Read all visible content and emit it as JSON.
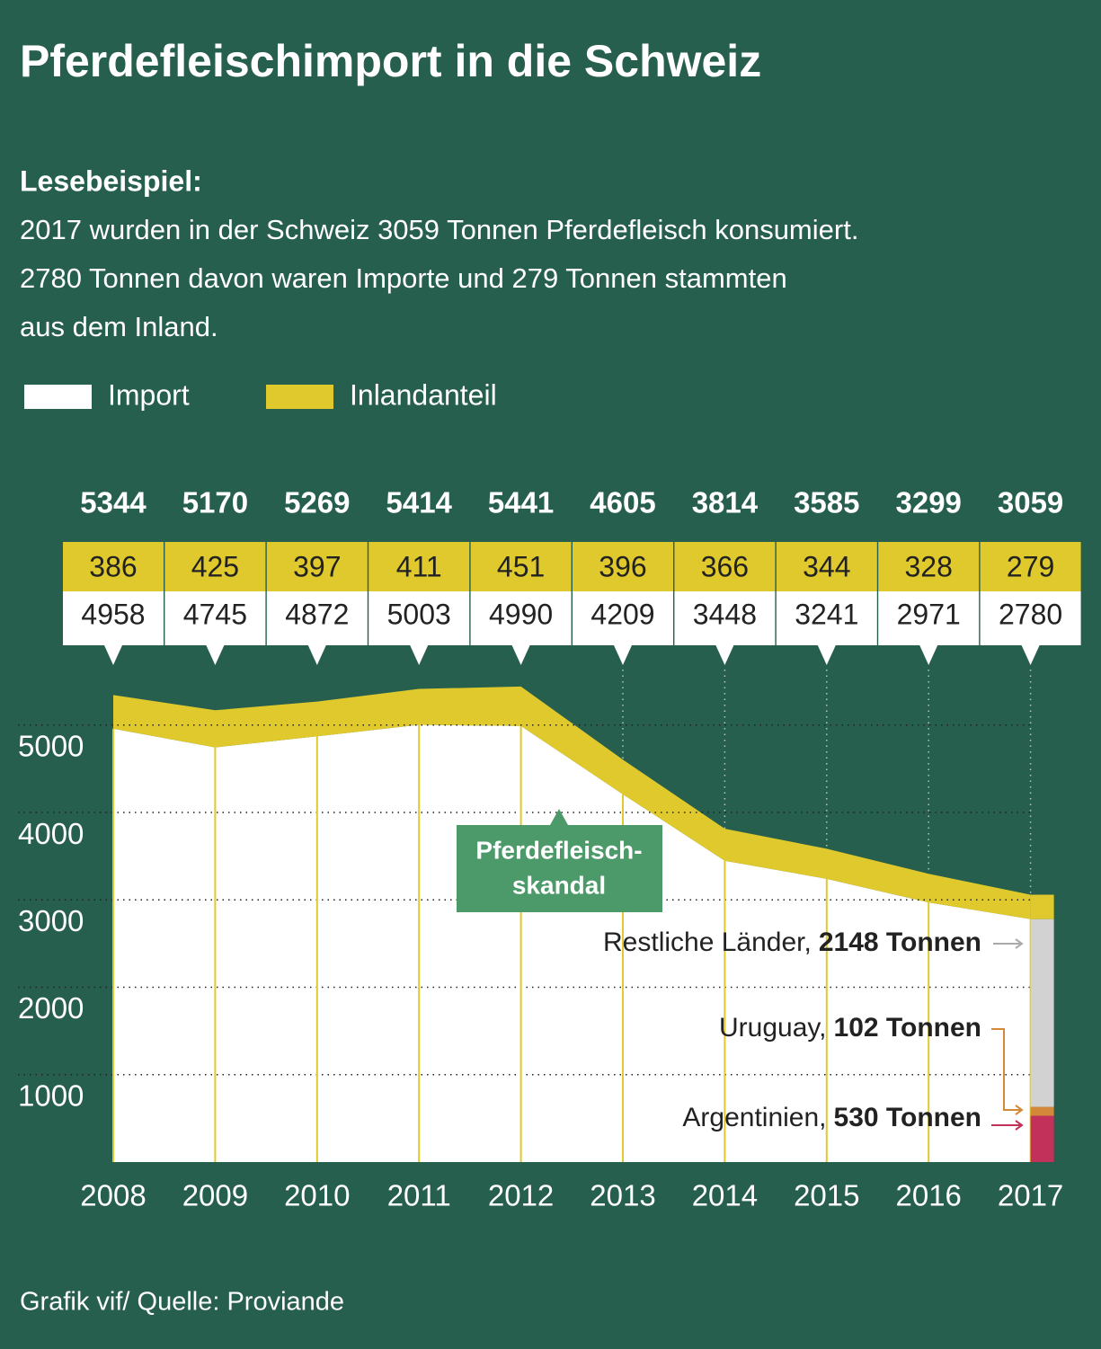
{
  "chart_data": {
    "type": "area",
    "title": "Pferdefleischimport in die Schweiz",
    "subtitle": "Lesebeispiel:",
    "description": [
      "2017 wurden in der Schweiz 3059 Tonnen Pferdefleisch konsumiert.",
      "2780 Tonnen davon waren Importe und 279 Tonnen stammten",
      "aus dem Inland."
    ],
    "categories": [
      "2008",
      "2009",
      "2010",
      "2011",
      "2012",
      "2013",
      "2014",
      "2015",
      "2016",
      "2017"
    ],
    "series": [
      {
        "name": "Import",
        "color": "#ffffff",
        "values": [
          4958,
          4745,
          4872,
          5003,
          4990,
          4209,
          3448,
          3241,
          2971,
          2780
        ]
      },
      {
        "name": "Inlandanteil",
        "color": "#e0c92c",
        "values": [
          386,
          425,
          397,
          411,
          451,
          396,
          366,
          344,
          328,
          279
        ]
      }
    ],
    "totals": [
      5344,
      5170,
      5269,
      5414,
      5441,
      4605,
      3814,
      3585,
      3299,
      3059
    ],
    "ylim": [
      0,
      5800
    ],
    "yticks": [
      1000,
      2000,
      3000,
      4000,
      5000
    ],
    "grid": true,
    "annotation": [
      "Pferdefleisch-",
      "skandal"
    ],
    "breakdown": {
      "categories": [
        "Restliche Länder,",
        "Uruguay,",
        "Argentinien,"
      ],
      "values": [
        2148,
        102,
        530
      ],
      "value_labels": [
        "2148 Tonnen",
        "102 Tonnen",
        "530 Tonnen"
      ],
      "colors": [
        "#d2d2d2",
        "#d4893a",
        "#c2315a"
      ]
    },
    "footer": "Grafik vif/ Quelle: Proviande"
  }
}
